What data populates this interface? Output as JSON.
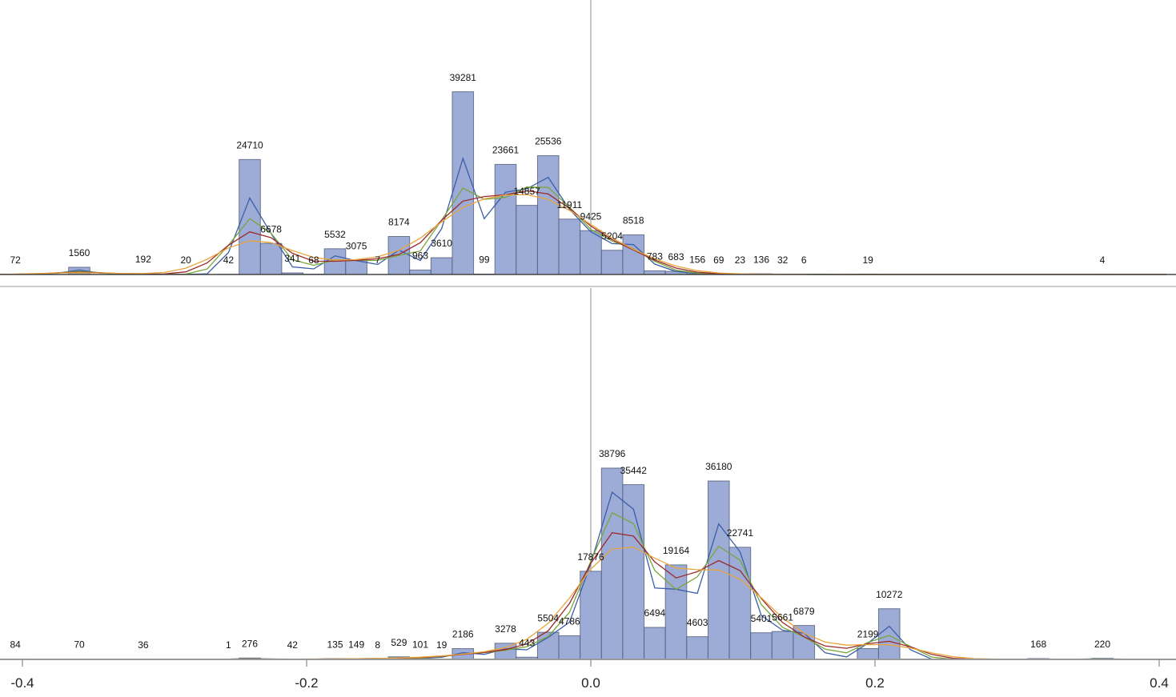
{
  "chart_data": [
    {
      "type": "bar",
      "panel": "top",
      "xlim": [
        -0.4,
        0.4
      ],
      "ylim": [
        0,
        59000
      ],
      "bin_width": 0.015,
      "bins": [
        {
          "x": -0.405,
          "count": 72,
          "label": "72"
        },
        {
          "x": -0.36,
          "count": 1560,
          "label": "1560"
        },
        {
          "x": -0.315,
          "count": 192,
          "label": "192"
        },
        {
          "x": -0.285,
          "count": 20,
          "label": "20"
        },
        {
          "x": -0.255,
          "count": 42,
          "label": "42"
        },
        {
          "x": -0.24,
          "count": 24710,
          "label": "24710"
        },
        {
          "x": -0.225,
          "count": 6678,
          "label": "6678"
        },
        {
          "x": -0.21,
          "count": 341,
          "label": "341"
        },
        {
          "x": -0.195,
          "count": 68,
          "label": "68"
        },
        {
          "x": -0.18,
          "count": 5532,
          "label": "5532"
        },
        {
          "x": -0.165,
          "count": 3075,
          "label": "3075"
        },
        {
          "x": -0.15,
          "count": 7,
          "label": "7"
        },
        {
          "x": -0.135,
          "count": 8174,
          "label": "8174"
        },
        {
          "x": -0.12,
          "count": 963,
          "label": "963"
        },
        {
          "x": -0.105,
          "count": 3610,
          "label": "3610"
        },
        {
          "x": -0.09,
          "count": 39281,
          "label": "39281"
        },
        {
          "x": -0.075,
          "count": 99,
          "label": "99"
        },
        {
          "x": -0.06,
          "count": 23661,
          "label": "23661"
        },
        {
          "x": -0.045,
          "count": 14857,
          "label": "14857"
        },
        {
          "x": -0.03,
          "count": 25536,
          "label": "25536"
        },
        {
          "x": -0.015,
          "count": 11911,
          "label": "11911"
        },
        {
          "x": 0.0,
          "count": 9425,
          "label": "9425"
        },
        {
          "x": 0.015,
          "count": 5204,
          "label": "5204"
        },
        {
          "x": 0.03,
          "count": 8518,
          "label": "8518"
        },
        {
          "x": 0.045,
          "count": 783,
          "label": "783"
        },
        {
          "x": 0.06,
          "count": 683,
          "label": "683"
        },
        {
          "x": 0.075,
          "count": 156,
          "label": "156"
        },
        {
          "x": 0.09,
          "count": 69,
          "label": "69"
        },
        {
          "x": 0.105,
          "count": 23,
          "label": "23"
        },
        {
          "x": 0.12,
          "count": 136,
          "label": "136"
        },
        {
          "x": 0.135,
          "count": 32,
          "label": "32"
        },
        {
          "x": 0.15,
          "count": 6,
          "label": "6"
        },
        {
          "x": 0.195,
          "count": 19,
          "label": "19"
        },
        {
          "x": 0.36,
          "count": 4,
          "label": "4"
        }
      ]
    },
    {
      "type": "bar",
      "panel": "bottom",
      "xlim": [
        -0.4,
        0.4
      ],
      "ylim": [
        0,
        75300
      ],
      "bin_width": 0.015,
      "xticks": [
        "-0.4",
        "-0.2",
        "0.0",
        "0.2",
        "0.4"
      ],
      "xtick_values": [
        -0.4,
        -0.2,
        0.0,
        0.2,
        0.4
      ],
      "bins": [
        {
          "x": -0.405,
          "count": 84,
          "label": "84"
        },
        {
          "x": -0.36,
          "count": 70,
          "label": "70"
        },
        {
          "x": -0.315,
          "count": 36,
          "label": "36"
        },
        {
          "x": -0.255,
          "count": 1,
          "label": "1"
        },
        {
          "x": -0.24,
          "count": 276,
          "label": "276"
        },
        {
          "x": -0.21,
          "count": 42,
          "label": "42"
        },
        {
          "x": -0.18,
          "count": 135,
          "label": "135"
        },
        {
          "x": -0.165,
          "count": 149,
          "label": "149"
        },
        {
          "x": -0.15,
          "count": 8,
          "label": "8"
        },
        {
          "x": -0.135,
          "count": 529,
          "label": "529"
        },
        {
          "x": -0.12,
          "count": 101,
          "label": "101"
        },
        {
          "x": -0.105,
          "count": 19,
          "label": "19"
        },
        {
          "x": -0.09,
          "count": 2186,
          "label": "2186"
        },
        {
          "x": -0.06,
          "count": 3278,
          "label": "3278"
        },
        {
          "x": -0.045,
          "count": 443,
          "label": "443"
        },
        {
          "x": -0.03,
          "count": 5504,
          "label": "5504"
        },
        {
          "x": -0.015,
          "count": 4786,
          "label": "4786"
        },
        {
          "x": 0.0,
          "count": 17876,
          "label": "17876"
        },
        {
          "x": 0.015,
          "count": 38796,
          "label": "38796"
        },
        {
          "x": 0.03,
          "count": 35442,
          "label": "35442"
        },
        {
          "x": 0.045,
          "count": 6494,
          "label": "6494"
        },
        {
          "x": 0.06,
          "count": 19164,
          "label": "19164"
        },
        {
          "x": 0.075,
          "count": 4603,
          "label": "4603"
        },
        {
          "x": 0.09,
          "count": 36180,
          "label": "36180"
        },
        {
          "x": 0.105,
          "count": 22741,
          "label": "22741"
        },
        {
          "x": 0.12,
          "count": 5401,
          "label": "5401"
        },
        {
          "x": 0.135,
          "count": 5661,
          "label": "5661"
        },
        {
          "x": 0.15,
          "count": 6879,
          "label": "6879"
        },
        {
          "x": 0.195,
          "count": 2199,
          "label": "2199"
        },
        {
          "x": 0.21,
          "count": 10272,
          "label": "10272"
        },
        {
          "x": 0.315,
          "count": 168,
          "label": "168"
        },
        {
          "x": 0.36,
          "count": 220,
          "label": "220"
        }
      ]
    }
  ],
  "colors": {
    "bar_fill": "#9dabd7",
    "bar_stroke": "#4a5570",
    "smooth_lines": [
      "#3a5fa8",
      "#7aa53a",
      "#9b2a2a",
      "#e8a53e"
    ],
    "zero_line": "#aaaaaa"
  }
}
